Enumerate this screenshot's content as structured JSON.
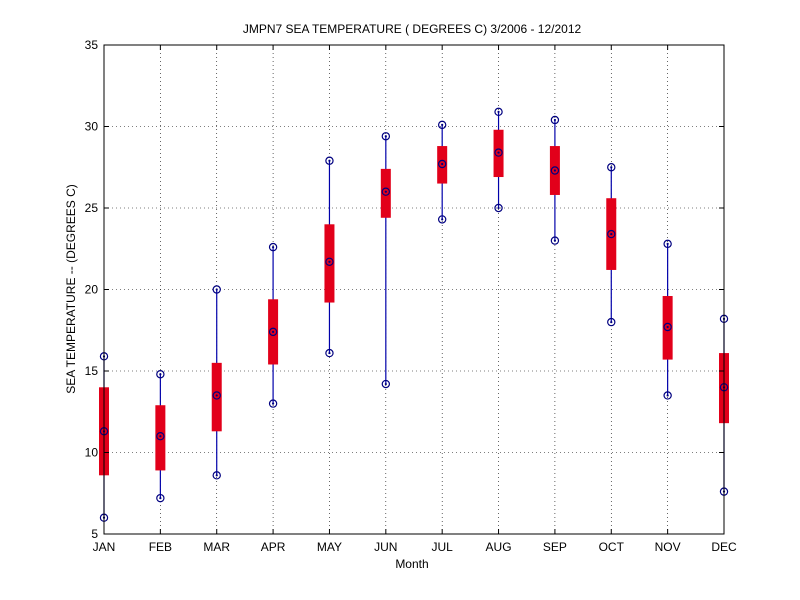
{
  "chart_data": {
    "type": "box",
    "title": "JMPN7  SEA TEMPERATURE ( DEGREES C) 3/2006 - 12/2012",
    "xlabel": "Month",
    "ylabel": "SEA TEMPERATURE -- (DEGREES C)",
    "ylim": [
      5,
      35
    ],
    "yticks": [
      5,
      10,
      15,
      20,
      25,
      30,
      35
    ],
    "grid": true,
    "categories": [
      "JAN",
      "FEB",
      "MAR",
      "APR",
      "MAY",
      "JUN",
      "JUL",
      "AUG",
      "SEP",
      "OCT",
      "NOV",
      "DEC"
    ],
    "min": [
      6.0,
      7.2,
      8.6,
      13.0,
      16.1,
      14.2,
      24.3,
      25.0,
      23.0,
      18.0,
      13.5,
      7.6
    ],
    "q1": [
      8.6,
      8.9,
      11.3,
      15.4,
      19.2,
      24.4,
      26.5,
      26.9,
      25.8,
      21.2,
      15.7,
      11.8
    ],
    "median": [
      11.3,
      11.0,
      13.5,
      17.4,
      21.7,
      26.0,
      27.7,
      28.4,
      27.3,
      23.4,
      17.7,
      14.0
    ],
    "q3": [
      14.0,
      12.9,
      15.5,
      19.4,
      24.0,
      27.4,
      28.8,
      29.8,
      28.8,
      25.6,
      19.6,
      16.1
    ],
    "max": [
      15.9,
      14.8,
      20.0,
      22.6,
      27.9,
      29.4,
      30.1,
      30.9,
      30.4,
      27.5,
      22.8,
      18.2
    ],
    "colors": {
      "whisker": "#0000aa",
      "box": "#e2001a",
      "marker": "#000080",
      "grid": "#000000"
    }
  }
}
